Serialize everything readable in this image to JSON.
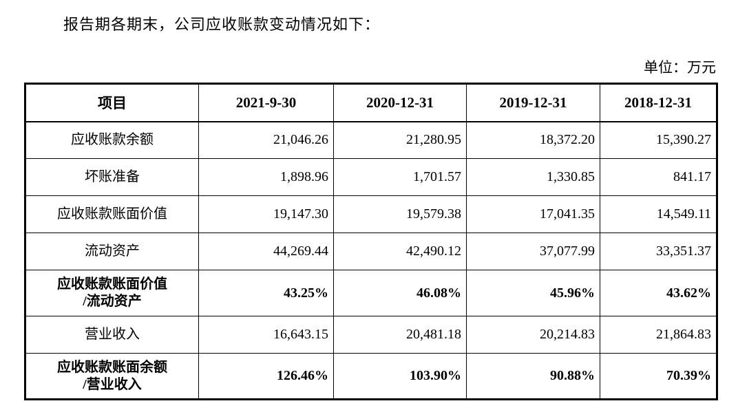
{
  "page": {
    "intro": "报告期各期末，公司应收账款变动情况如下：",
    "unit_label": "单位：万元"
  },
  "table": {
    "headers": [
      "项目",
      "2021-9-30",
      "2020-12-31",
      "2019-12-31",
      "2018-12-31"
    ],
    "rows": [
      {
        "label": "应收账款余额",
        "bold": false,
        "values": [
          "21,046.26",
          "21,280.95",
          "18,372.20",
          "15,390.27"
        ]
      },
      {
        "label": "坏账准备",
        "bold": false,
        "values": [
          "1,898.96",
          "1,701.57",
          "1,330.85",
          "841.17"
        ]
      },
      {
        "label": "应收账款账面价值",
        "bold": false,
        "values": [
          "19,147.30",
          "19,579.38",
          "17,041.35",
          "14,549.11"
        ]
      },
      {
        "label": "流动资产",
        "bold": false,
        "values": [
          "44,269.44",
          "42,490.12",
          "37,077.99",
          "33,351.37"
        ]
      },
      {
        "label": "应收账款账面价值",
        "label2": "/流动资产",
        "bold": true,
        "values": [
          "43.25%",
          "46.08%",
          "45.96%",
          "43.62%"
        ]
      },
      {
        "label": "营业收入",
        "bold": false,
        "values": [
          "16,643.15",
          "20,481.18",
          "20,214.83",
          "21,864.83"
        ]
      },
      {
        "label": "应收账款账面余额",
        "label2": "/营业收入",
        "bold": true,
        "values": [
          "126.46%",
          "103.90%",
          "90.88%",
          "70.39%"
        ]
      }
    ]
  }
}
